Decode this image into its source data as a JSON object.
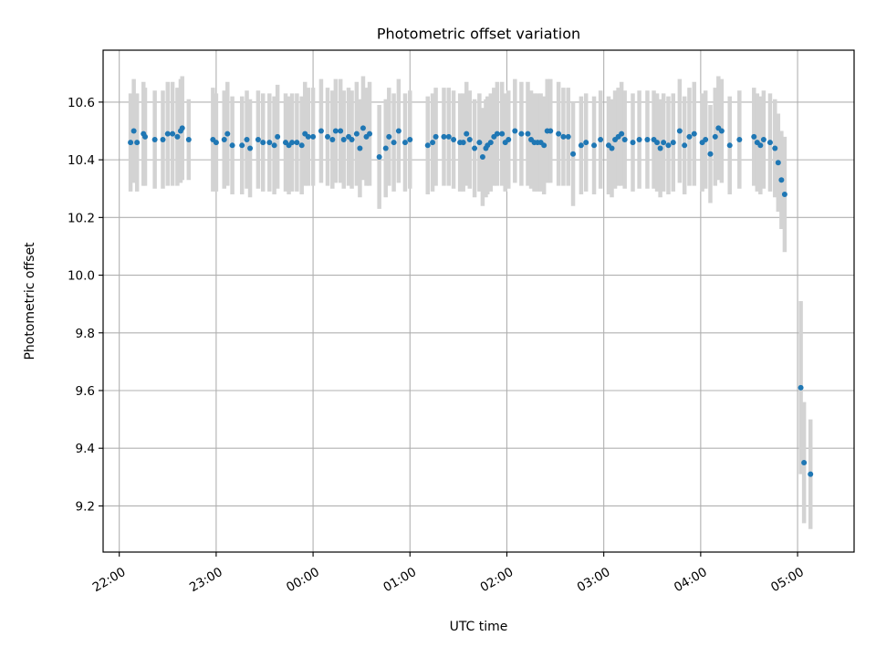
{
  "chart_data": {
    "type": "scatter",
    "title": "Photometric offset variation",
    "xlabel": "UTC time",
    "ylabel": "Photometric offset",
    "x_is_time": true,
    "x_range": [
      "21:50",
      "05:35"
    ],
    "ylim": [
      9.04,
      10.78
    ],
    "grid": true,
    "legend": false,
    "x_ticks": [
      "22:00",
      "23:00",
      "00:00",
      "01:00",
      "02:00",
      "03:00",
      "04:00",
      "05:00"
    ],
    "y_ticks": [
      9.2,
      9.4,
      9.6,
      9.8,
      10.0,
      10.2,
      10.4,
      10.6
    ],
    "y_tick_labels": [
      "9.2",
      "9.4",
      "9.6",
      "9.8",
      "10.0",
      "10.2",
      "10.4",
      "10.6"
    ],
    "colors": {
      "point": "#1f77b4",
      "errorbar": "#d3d3d3",
      "grid": "#b0b0b0"
    },
    "series": [
      {
        "marker": "point",
        "errorbars": "vertical",
        "points": [
          {
            "t": "22:07",
            "y": 10.46,
            "e": 0.17
          },
          {
            "t": "22:09",
            "y": 10.5,
            "e": 0.18
          },
          {
            "t": "22:11",
            "y": 10.46,
            "e": 0.17
          },
          {
            "t": "22:15",
            "y": 10.49,
            "e": 0.18
          },
          {
            "t": "22:16",
            "y": 10.48,
            "e": 0.17
          },
          {
            "t": "22:22",
            "y": 10.47,
            "e": 0.17
          },
          {
            "t": "22:27",
            "y": 10.47,
            "e": 0.17
          },
          {
            "t": "22:30",
            "y": 10.49,
            "e": 0.18
          },
          {
            "t": "22:33",
            "y": 10.49,
            "e": 0.18
          },
          {
            "t": "22:36",
            "y": 10.48,
            "e": 0.17
          },
          {
            "t": "22:38",
            "y": 10.5,
            "e": 0.18
          },
          {
            "t": "22:39",
            "y": 10.51,
            "e": 0.18
          },
          {
            "t": "22:43",
            "y": 10.47,
            "e": 0.14
          },
          {
            "t": "22:58",
            "y": 10.47,
            "e": 0.18
          },
          {
            "t": "23:00",
            "y": 10.46,
            "e": 0.17
          },
          {
            "t": "23:05",
            "y": 10.47,
            "e": 0.17
          },
          {
            "t": "23:07",
            "y": 10.49,
            "e": 0.18
          },
          {
            "t": "23:10",
            "y": 10.45,
            "e": 0.17
          },
          {
            "t": "23:16",
            "y": 10.45,
            "e": 0.17
          },
          {
            "t": "23:19",
            "y": 10.47,
            "e": 0.17
          },
          {
            "t": "23:21",
            "y": 10.44,
            "e": 0.17
          },
          {
            "t": "23:26",
            "y": 10.47,
            "e": 0.17
          },
          {
            "t": "23:29",
            "y": 10.46,
            "e": 0.17
          },
          {
            "t": "23:33",
            "y": 10.46,
            "e": 0.17
          },
          {
            "t": "23:36",
            "y": 10.45,
            "e": 0.17
          },
          {
            "t": "23:38",
            "y": 10.48,
            "e": 0.18
          },
          {
            "t": "23:43",
            "y": 10.46,
            "e": 0.17
          },
          {
            "t": "23:45",
            "y": 10.45,
            "e": 0.17
          },
          {
            "t": "23:47",
            "y": 10.46,
            "e": 0.17
          },
          {
            "t": "23:50",
            "y": 10.46,
            "e": 0.17
          },
          {
            "t": "23:53",
            "y": 10.45,
            "e": 0.17
          },
          {
            "t": "23:55",
            "y": 10.49,
            "e": 0.18
          },
          {
            "t": "23:57",
            "y": 10.48,
            "e": 0.17
          },
          {
            "t": "00:00",
            "y": 10.48,
            "e": 0.17
          },
          {
            "t": "00:05",
            "y": 10.5,
            "e": 0.18
          },
          {
            "t": "00:09",
            "y": 10.48,
            "e": 0.17
          },
          {
            "t": "00:12",
            "y": 10.47,
            "e": 0.17
          },
          {
            "t": "00:14",
            "y": 10.5,
            "e": 0.18
          },
          {
            "t": "00:17",
            "y": 10.5,
            "e": 0.18
          },
          {
            "t": "00:19",
            "y": 10.47,
            "e": 0.17
          },
          {
            "t": "00:22",
            "y": 10.48,
            "e": 0.17
          },
          {
            "t": "00:24",
            "y": 10.47,
            "e": 0.17
          },
          {
            "t": "00:27",
            "y": 10.49,
            "e": 0.18
          },
          {
            "t": "00:29",
            "y": 10.44,
            "e": 0.17
          },
          {
            "t": "00:31",
            "y": 10.51,
            "e": 0.18
          },
          {
            "t": "00:33",
            "y": 10.48,
            "e": 0.17
          },
          {
            "t": "00:35",
            "y": 10.49,
            "e": 0.18
          },
          {
            "t": "00:41",
            "y": 10.41,
            "e": 0.18
          },
          {
            "t": "00:45",
            "y": 10.44,
            "e": 0.17
          },
          {
            "t": "00:47",
            "y": 10.48,
            "e": 0.17
          },
          {
            "t": "00:50",
            "y": 10.46,
            "e": 0.17
          },
          {
            "t": "00:53",
            "y": 10.5,
            "e": 0.18
          },
          {
            "t": "00:57",
            "y": 10.46,
            "e": 0.17
          },
          {
            "t": "01:00",
            "y": 10.47,
            "e": 0.17
          },
          {
            "t": "01:11",
            "y": 10.45,
            "e": 0.17
          },
          {
            "t": "01:14",
            "y": 10.46,
            "e": 0.17
          },
          {
            "t": "01:16",
            "y": 10.48,
            "e": 0.17
          },
          {
            "t": "01:21",
            "y": 10.48,
            "e": 0.17
          },
          {
            "t": "01:24",
            "y": 10.48,
            "e": 0.17
          },
          {
            "t": "01:27",
            "y": 10.47,
            "e": 0.17
          },
          {
            "t": "01:31",
            "y": 10.46,
            "e": 0.17
          },
          {
            "t": "01:33",
            "y": 10.46,
            "e": 0.17
          },
          {
            "t": "01:35",
            "y": 10.49,
            "e": 0.18
          },
          {
            "t": "01:37",
            "y": 10.47,
            "e": 0.17
          },
          {
            "t": "01:40",
            "y": 10.44,
            "e": 0.17
          },
          {
            "t": "01:43",
            "y": 10.46,
            "e": 0.17
          },
          {
            "t": "01:45",
            "y": 10.41,
            "e": 0.17
          },
          {
            "t": "01:47",
            "y": 10.44,
            "e": 0.17
          },
          {
            "t": "01:48",
            "y": 10.45,
            "e": 0.17
          },
          {
            "t": "01:50",
            "y": 10.46,
            "e": 0.17
          },
          {
            "t": "01:52",
            "y": 10.48,
            "e": 0.17
          },
          {
            "t": "01:54",
            "y": 10.49,
            "e": 0.18
          },
          {
            "t": "01:57",
            "y": 10.49,
            "e": 0.18
          },
          {
            "t": "01:59",
            "y": 10.46,
            "e": 0.17
          },
          {
            "t": "02:01",
            "y": 10.47,
            "e": 0.17
          },
          {
            "t": "02:05",
            "y": 10.5,
            "e": 0.18
          },
          {
            "t": "02:09",
            "y": 10.49,
            "e": 0.18
          },
          {
            "t": "02:13",
            "y": 10.49,
            "e": 0.18
          },
          {
            "t": "02:15",
            "y": 10.47,
            "e": 0.17
          },
          {
            "t": "02:17",
            "y": 10.46,
            "e": 0.17
          },
          {
            "t": "02:19",
            "y": 10.46,
            "e": 0.17
          },
          {
            "t": "02:21",
            "y": 10.46,
            "e": 0.17
          },
          {
            "t": "02:23",
            "y": 10.45,
            "e": 0.17
          },
          {
            "t": "02:25",
            "y": 10.5,
            "e": 0.18
          },
          {
            "t": "02:27",
            "y": 10.5,
            "e": 0.18
          },
          {
            "t": "02:32",
            "y": 10.49,
            "e": 0.18
          },
          {
            "t": "02:35",
            "y": 10.48,
            "e": 0.17
          },
          {
            "t": "02:38",
            "y": 10.48,
            "e": 0.17
          },
          {
            "t": "02:41",
            "y": 10.42,
            "e": 0.18
          },
          {
            "t": "02:46",
            "y": 10.45,
            "e": 0.17
          },
          {
            "t": "02:49",
            "y": 10.46,
            "e": 0.17
          },
          {
            "t": "02:54",
            "y": 10.45,
            "e": 0.17
          },
          {
            "t": "02:58",
            "y": 10.47,
            "e": 0.17
          },
          {
            "t": "03:03",
            "y": 10.45,
            "e": 0.17
          },
          {
            "t": "03:05",
            "y": 10.44,
            "e": 0.17
          },
          {
            "t": "03:07",
            "y": 10.47,
            "e": 0.17
          },
          {
            "t": "03:09",
            "y": 10.48,
            "e": 0.17
          },
          {
            "t": "03:11",
            "y": 10.49,
            "e": 0.18
          },
          {
            "t": "03:13",
            "y": 10.47,
            "e": 0.17
          },
          {
            "t": "03:18",
            "y": 10.46,
            "e": 0.17
          },
          {
            "t": "03:22",
            "y": 10.47,
            "e": 0.17
          },
          {
            "t": "03:27",
            "y": 10.47,
            "e": 0.17
          },
          {
            "t": "03:31",
            "y": 10.47,
            "e": 0.17
          },
          {
            "t": "03:33",
            "y": 10.46,
            "e": 0.17
          },
          {
            "t": "03:35",
            "y": 10.44,
            "e": 0.17
          },
          {
            "t": "03:37",
            "y": 10.46,
            "e": 0.17
          },
          {
            "t": "03:40",
            "y": 10.45,
            "e": 0.17
          },
          {
            "t": "03:43",
            "y": 10.46,
            "e": 0.17
          },
          {
            "t": "03:47",
            "y": 10.5,
            "e": 0.18
          },
          {
            "t": "03:50",
            "y": 10.45,
            "e": 0.17
          },
          {
            "t": "03:53",
            "y": 10.48,
            "e": 0.17
          },
          {
            "t": "03:56",
            "y": 10.49,
            "e": 0.18
          },
          {
            "t": "04:01",
            "y": 10.46,
            "e": 0.17
          },
          {
            "t": "04:03",
            "y": 10.47,
            "e": 0.17
          },
          {
            "t": "04:06",
            "y": 10.42,
            "e": 0.17
          },
          {
            "t": "04:09",
            "y": 10.48,
            "e": 0.17
          },
          {
            "t": "04:11",
            "y": 10.51,
            "e": 0.18
          },
          {
            "t": "04:13",
            "y": 10.5,
            "e": 0.18
          },
          {
            "t": "04:18",
            "y": 10.45,
            "e": 0.17
          },
          {
            "t": "04:24",
            "y": 10.47,
            "e": 0.17
          },
          {
            "t": "04:33",
            "y": 10.48,
            "e": 0.17
          },
          {
            "t": "04:35",
            "y": 10.46,
            "e": 0.17
          },
          {
            "t": "04:37",
            "y": 10.45,
            "e": 0.17
          },
          {
            "t": "04:39",
            "y": 10.47,
            "e": 0.17
          },
          {
            "t": "04:43",
            "y": 10.46,
            "e": 0.17
          },
          {
            "t": "04:46",
            "y": 10.44,
            "e": 0.17
          },
          {
            "t": "04:48",
            "y": 10.39,
            "e": 0.17
          },
          {
            "t": "04:50",
            "y": 10.33,
            "e": 0.17
          },
          {
            "t": "04:52",
            "y": 10.28,
            "e": 0.2
          },
          {
            "t": "05:02",
            "y": 9.61,
            "e": 0.3
          },
          {
            "t": "05:04",
            "y": 9.35,
            "e": 0.21
          },
          {
            "t": "05:08",
            "y": 9.31,
            "e": 0.19
          }
        ]
      }
    ]
  }
}
